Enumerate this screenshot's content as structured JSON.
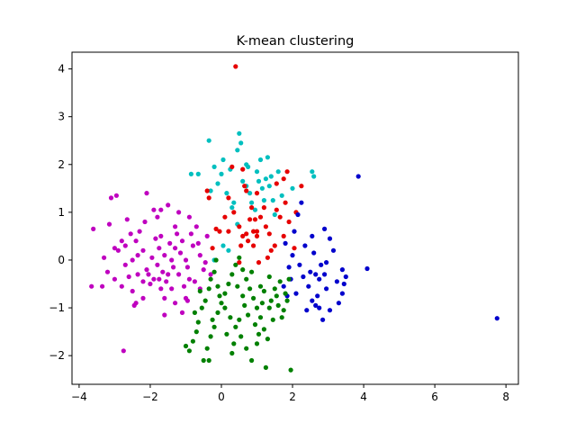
{
  "chart_data": {
    "type": "scatter",
    "title": "K-mean clustering",
    "xlabel": "",
    "ylabel": "",
    "xlim": [
      -4.2,
      8.35
    ],
    "ylim": [
      -2.6,
      4.35
    ],
    "x_ticks": [
      -4,
      -2,
      0,
      2,
      4,
      6,
      8
    ],
    "y_ticks": [
      -2,
      -1,
      0,
      1,
      2,
      3,
      4
    ],
    "grid": false,
    "legend": "none",
    "series": [
      {
        "color": "#bf00bf",
        "points": [
          [
            -3.6,
            0.65
          ],
          [
            -3.65,
            -0.55
          ],
          [
            -3.35,
            -0.55
          ],
          [
            -3.2,
            -0.25
          ],
          [
            -3.3,
            0.05
          ],
          [
            -3.0,
            0.25
          ],
          [
            -3.1,
            1.3
          ],
          [
            -2.95,
            1.35
          ],
          [
            -2.9,
            0.2
          ],
          [
            -2.8,
            0.4
          ],
          [
            -2.7,
            -0.1
          ],
          [
            -2.6,
            -0.35
          ],
          [
            -2.8,
            -0.55
          ],
          [
            -2.5,
            0.0
          ],
          [
            -2.4,
            0.4
          ],
          [
            -2.3,
            0.6
          ],
          [
            -2.2,
            0.2
          ],
          [
            -2.1,
            -0.2
          ],
          [
            -2.0,
            -0.5
          ],
          [
            -2.2,
            -0.8
          ],
          [
            -2.4,
            -0.9
          ],
          [
            -2.1,
            1.4
          ],
          [
            -1.8,
            0.9
          ],
          [
            -1.7,
            0.5
          ],
          [
            -1.6,
            0.1
          ],
          [
            -1.5,
            -0.3
          ],
          [
            -1.4,
            -0.6
          ],
          [
            -1.6,
            -0.8
          ],
          [
            -1.3,
            0.7
          ],
          [
            -1.2,
            1.0
          ],
          [
            -1.1,
            0.4
          ],
          [
            -1.0,
            0.0
          ],
          [
            -0.9,
            -0.4
          ],
          [
            -1.0,
            -0.8
          ],
          [
            -1.5,
            1.15
          ],
          [
            -1.3,
            0.25
          ],
          [
            -1.8,
            -0.1
          ],
          [
            -1.9,
            -0.4
          ],
          [
            -2.5,
            -0.65
          ],
          [
            -2.7,
            0.3
          ],
          [
            -2.35,
            0.1
          ],
          [
            -2.2,
            -0.45
          ],
          [
            -1.7,
            -0.6
          ],
          [
            -1.4,
            0.0
          ],
          [
            -1.2,
            -0.3
          ],
          [
            -0.8,
            0.3
          ],
          [
            -0.7,
            0.7
          ],
          [
            -0.6,
            0.1
          ],
          [
            -0.5,
            -0.2
          ],
          [
            -0.6,
            -0.6
          ],
          [
            -0.4,
            0.5
          ],
          [
            -0.9,
            0.9
          ],
          [
            -1.1,
            -1.1
          ],
          [
            -1.6,
            -1.15
          ],
          [
            -2.05,
            -0.3
          ],
          [
            -1.95,
            0.05
          ],
          [
            -1.75,
            0.25
          ],
          [
            -1.55,
            -0.45
          ],
          [
            -1.35,
            -0.15
          ],
          [
            -1.15,
            0.15
          ],
          [
            -0.95,
            -0.15
          ],
          [
            -0.75,
            -0.45
          ],
          [
            -0.85,
            0.55
          ],
          [
            -1.25,
            0.55
          ],
          [
            -1.45,
            0.35
          ],
          [
            -1.65,
            -0.25
          ],
          [
            -1.85,
            0.45
          ],
          [
            -2.75,
            -1.9
          ],
          [
            -2.45,
            -0.95
          ],
          [
            -0.3,
            -0.3
          ],
          [
            -0.45,
            -0.05
          ],
          [
            -0.65,
            0.35
          ],
          [
            -1.05,
            -0.55
          ],
          [
            -1.9,
            1.05
          ],
          [
            -2.15,
            0.8
          ],
          [
            -2.55,
            0.55
          ],
          [
            -3.0,
            -0.4
          ],
          [
            -3.15,
            0.75
          ],
          [
            -2.65,
            0.85
          ],
          [
            -1.7,
            1.05
          ],
          [
            -1.3,
            -0.9
          ],
          [
            -0.95,
            -0.85
          ],
          [
            -2.35,
            -0.3
          ],
          [
            -1.75,
            -0.4
          ]
        ]
      },
      {
        "color": "#00bfbf",
        "points": [
          [
            -0.85,
            1.8
          ],
          [
            -0.65,
            1.8
          ],
          [
            -0.35,
            2.5
          ],
          [
            -0.3,
            1.45
          ],
          [
            -0.2,
            1.95
          ],
          [
            -0.1,
            1.6
          ],
          [
            0.0,
            1.8
          ],
          [
            0.05,
            2.1
          ],
          [
            0.15,
            1.4
          ],
          [
            0.25,
            1.9
          ],
          [
            0.35,
            1.2
          ],
          [
            0.45,
            2.3
          ],
          [
            0.5,
            2.65
          ],
          [
            0.55,
            2.45
          ],
          [
            0.6,
            1.65
          ],
          [
            0.7,
            1.55
          ],
          [
            0.75,
            1.95
          ],
          [
            0.8,
            1.4
          ],
          [
            0.85,
            1.2
          ],
          [
            1.0,
            1.85
          ],
          [
            1.05,
            1.65
          ],
          [
            1.1,
            2.1
          ],
          [
            1.15,
            1.5
          ],
          [
            1.2,
            1.25
          ],
          [
            1.3,
            2.15
          ],
          [
            1.35,
            1.55
          ],
          [
            1.4,
            1.75
          ],
          [
            1.5,
            0.95
          ],
          [
            1.6,
            1.85
          ],
          [
            1.7,
            1.35
          ],
          [
            2.0,
            1.5
          ],
          [
            2.55,
            1.85
          ],
          [
            2.6,
            1.75
          ],
          [
            -0.2,
            0.0
          ],
          [
            0.05,
            0.3
          ],
          [
            0.3,
            1.1
          ],
          [
            0.45,
            0.75
          ],
          [
            1.25,
            1.7
          ],
          [
            0.95,
            1.05
          ],
          [
            0.7,
            2.0
          ],
          [
            1.45,
            1.25
          ],
          [
            0.2,
            0.2
          ]
        ]
      },
      {
        "color": "#e60000",
        "points": [
          [
            0.4,
            4.05
          ],
          [
            -0.4,
            1.45
          ],
          [
            -0.35,
            1.3
          ],
          [
            -0.15,
            0.65
          ],
          [
            -0.05,
            0.6
          ],
          [
            0.1,
            0.9
          ],
          [
            0.2,
            0.6
          ],
          [
            0.35,
            1.0
          ],
          [
            0.5,
            0.7
          ],
          [
            0.55,
            0.3
          ],
          [
            0.6,
            0.5
          ],
          [
            0.65,
            1.55
          ],
          [
            0.7,
            1.45
          ],
          [
            0.75,
            0.4
          ],
          [
            0.8,
            0.85
          ],
          [
            0.9,
            0.6
          ],
          [
            1.0,
            0.5
          ],
          [
            1.1,
            0.9
          ],
          [
            1.2,
            1.1
          ],
          [
            1.25,
            0.7
          ],
          [
            1.35,
            0.55
          ],
          [
            1.4,
            0.2
          ],
          [
            1.5,
            0.3
          ],
          [
            1.55,
            1.05
          ],
          [
            1.65,
            0.9
          ],
          [
            1.75,
            1.7
          ],
          [
            1.8,
            1.2
          ],
          [
            1.9,
            0.8
          ],
          [
            2.1,
            1.0
          ],
          [
            2.25,
            1.55
          ],
          [
            1.85,
            1.85
          ],
          [
            1.55,
            1.6
          ],
          [
            1.0,
            0.6
          ],
          [
            0.6,
            1.9
          ],
          [
            0.3,
            1.95
          ],
          [
            0.85,
            1.1
          ],
          [
            1.3,
            0.05
          ],
          [
            0.5,
            -0.05
          ],
          [
            1.0,
            1.4
          ],
          [
            1.05,
            -0.05
          ],
          [
            0.7,
            0.55
          ],
          [
            0.9,
            0.3
          ],
          [
            1.75,
            0.5
          ],
          [
            2.05,
            0.25
          ],
          [
            -0.25,
            0.25
          ],
          [
            0.2,
            1.3
          ],
          [
            0.95,
            0.85
          ]
        ]
      },
      {
        "color": "#0000cc",
        "points": [
          [
            7.75,
            -1.22
          ],
          [
            4.1,
            -0.18
          ],
          [
            3.85,
            1.75
          ],
          [
            3.45,
            -0.5
          ],
          [
            3.4,
            -0.7
          ],
          [
            3.3,
            -0.9
          ],
          [
            3.15,
            0.2
          ],
          [
            3.05,
            -1.05
          ],
          [
            2.95,
            -0.6
          ],
          [
            2.9,
            -0.3
          ],
          [
            2.8,
            -0.1
          ],
          [
            2.75,
            -0.4
          ],
          [
            2.7,
            -0.75
          ],
          [
            2.65,
            -0.95
          ],
          [
            2.6,
            0.15
          ],
          [
            2.55,
            0.5
          ],
          [
            2.5,
            -0.25
          ],
          [
            2.45,
            -0.55
          ],
          [
            2.4,
            -1.05
          ],
          [
            2.35,
            0.3
          ],
          [
            2.3,
            -0.35
          ],
          [
            2.2,
            -0.1
          ],
          [
            2.1,
            -0.7
          ],
          [
            2.05,
            0.6
          ],
          [
            2.0,
            0.1
          ],
          [
            1.95,
            -0.4
          ],
          [
            1.85,
            -0.75
          ],
          [
            1.8,
            0.35
          ],
          [
            2.15,
            0.95
          ],
          [
            2.25,
            1.2
          ],
          [
            2.9,
            0.65
          ],
          [
            2.95,
            -0.05
          ],
          [
            3.4,
            -0.2
          ],
          [
            3.25,
            -0.45
          ],
          [
            2.55,
            -0.85
          ],
          [
            2.75,
            -1.0
          ],
          [
            2.85,
            -1.25
          ],
          [
            3.05,
            0.45
          ],
          [
            1.9,
            -0.15
          ],
          [
            1.75,
            -0.55
          ],
          [
            3.5,
            -0.35
          ],
          [
            2.65,
            -0.3
          ]
        ]
      },
      {
        "color": "#008000",
        "points": [
          [
            -0.15,
            0.0
          ],
          [
            -0.2,
            -0.25
          ],
          [
            -0.3,
            -0.4
          ],
          [
            -0.35,
            -0.6
          ],
          [
            -0.45,
            -0.85
          ],
          [
            -0.55,
            -1.0
          ],
          [
            -0.65,
            -1.3
          ],
          [
            -0.7,
            -1.5
          ],
          [
            -0.8,
            -1.7
          ],
          [
            -0.9,
            -1.9
          ],
          [
            -1.0,
            -1.8
          ],
          [
            -0.5,
            -2.1
          ],
          [
            -0.4,
            -1.85
          ],
          [
            -0.3,
            -1.6
          ],
          [
            -0.2,
            -1.4
          ],
          [
            -0.1,
            -1.1
          ],
          [
            0.0,
            -0.9
          ],
          [
            0.1,
            -0.7
          ],
          [
            0.2,
            -0.5
          ],
          [
            0.3,
            -0.3
          ],
          [
            0.4,
            -0.1
          ],
          [
            0.5,
            0.05
          ],
          [
            0.6,
            -0.2
          ],
          [
            0.7,
            -0.4
          ],
          [
            0.8,
            -0.6
          ],
          [
            0.9,
            -0.8
          ],
          [
            1.0,
            -1.0
          ],
          [
            1.1,
            -1.2
          ],
          [
            1.2,
            -1.45
          ],
          [
            1.3,
            -1.65
          ],
          [
            1.4,
            -0.85
          ],
          [
            1.5,
            -0.6
          ],
          [
            1.6,
            -0.95
          ],
          [
            1.7,
            -1.2
          ],
          [
            1.8,
            -0.7
          ],
          [
            1.9,
            -0.4
          ],
          [
            1.95,
            -2.3
          ],
          [
            1.25,
            -2.25
          ],
          [
            0.85,
            -2.1
          ],
          [
            0.7,
            -1.85
          ],
          [
            0.55,
            -1.6
          ],
          [
            0.4,
            -1.4
          ],
          [
            0.25,
            -1.2
          ],
          [
            0.1,
            -1.0
          ],
          [
            -0.05,
            -0.75
          ],
          [
            0.15,
            -1.55
          ],
          [
            0.35,
            -1.75
          ],
          [
            0.5,
            -1.25
          ],
          [
            0.65,
            -0.95
          ],
          [
            0.75,
            -1.15
          ],
          [
            0.95,
            -1.35
          ],
          [
            1.05,
            -1.55
          ],
          [
            1.15,
            -0.9
          ],
          [
            1.35,
            -1.0
          ],
          [
            1.45,
            -1.25
          ],
          [
            1.55,
            -0.75
          ],
          [
            1.65,
            -0.45
          ],
          [
            1.75,
            -1.05
          ],
          [
            -0.6,
            -0.65
          ],
          [
            -0.75,
            -1.1
          ],
          [
            -0.25,
            -1.25
          ],
          [
            -0.35,
            -2.1
          ],
          [
            0.3,
            -1.95
          ],
          [
            1.0,
            -1.75
          ],
          [
            1.2,
            -0.65
          ],
          [
            0.45,
            -0.55
          ],
          [
            0.85,
            -0.25
          ],
          [
            1.35,
            -0.35
          ],
          [
            1.85,
            -0.85
          ],
          [
            -0.1,
            -0.55
          ],
          [
            0.6,
            -0.75
          ],
          [
            1.1,
            -0.55
          ]
        ]
      }
    ]
  }
}
